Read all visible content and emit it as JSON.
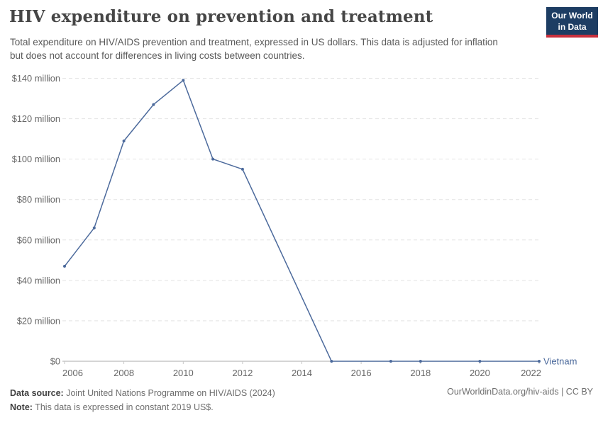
{
  "header": {
    "title": "HIV expenditure on prevention and treatment",
    "subtitle": "Total expenditure on HIV/AIDS prevention and treatment, expressed in US dollars. This data is adjusted for inflation but does not account for differences in living costs between countries.",
    "logo": {
      "line1": "Our World",
      "line2": "in Data",
      "bg_color": "#1d3d63",
      "accent_color": "#c8303d"
    }
  },
  "chart_data": {
    "type": "line",
    "title": "HIV expenditure on prevention and treatment",
    "unit": "US$ (constant 2019 prices)",
    "xlabel": "",
    "ylabel": "",
    "x_range": [
      2006,
      2022
    ],
    "y_range_million_usd": [
      0,
      140
    ],
    "grid": "horizontal-dashed",
    "legend_position": "end-of-line",
    "series": [
      {
        "name": "Vietnam",
        "color": "#4c6a9c",
        "unit": "million US$",
        "points": [
          [
            2006,
            47
          ],
          [
            2007,
            66
          ],
          [
            2008,
            109
          ],
          [
            2009,
            127
          ],
          [
            2010,
            139
          ],
          [
            2011,
            100
          ],
          [
            2012,
            95
          ],
          [
            2015,
            0
          ],
          [
            2017,
            0
          ],
          [
            2018,
            0
          ],
          [
            2020,
            0
          ],
          [
            2022,
            0
          ]
        ]
      }
    ],
    "yticks": [
      {
        "value": 0,
        "label": "$0"
      },
      {
        "value": 20,
        "label": "$20 million"
      },
      {
        "value": 40,
        "label": "$40 million"
      },
      {
        "value": 60,
        "label": "$60 million"
      },
      {
        "value": 80,
        "label": "$80 million"
      },
      {
        "value": 100,
        "label": "$100 million"
      },
      {
        "value": 120,
        "label": "$120 million"
      },
      {
        "value": 140,
        "label": "$140 million"
      }
    ],
    "xticks": [
      {
        "value": 2006,
        "label": "2006"
      },
      {
        "value": 2008,
        "label": "2008"
      },
      {
        "value": 2010,
        "label": "2010"
      },
      {
        "value": 2012,
        "label": "2012"
      },
      {
        "value": 2014,
        "label": "2014"
      },
      {
        "value": 2016,
        "label": "2016"
      },
      {
        "value": 2018,
        "label": "2018"
      },
      {
        "value": 2020,
        "label": "2020"
      },
      {
        "value": 2022,
        "label": "2022"
      }
    ]
  },
  "footer": {
    "source_label": "Data source:",
    "source_text": " Joint United Nations Programme on HIV/AIDS (2024)",
    "note_label": "Note:",
    "note_text": " This data is expressed in constant 2019 US$.",
    "right_text": "OurWorldinData.org/hiv-aids | CC BY"
  }
}
